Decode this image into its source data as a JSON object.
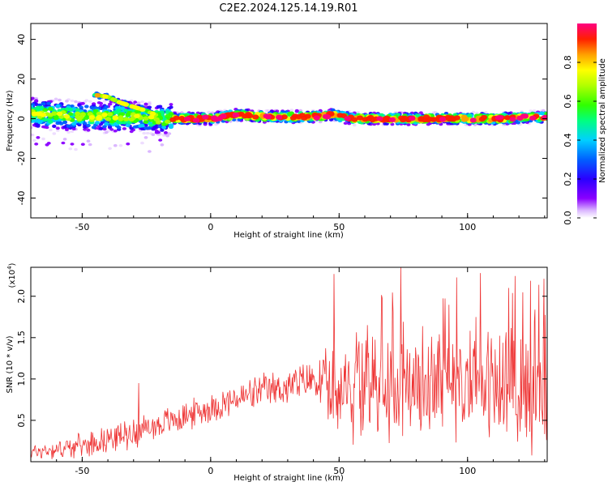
{
  "title": "C2E2.2024.125.14.19.R01",
  "chart_data": [
    {
      "type": "heatmap",
      "xlabel": "Height of straight line (km)",
      "ylabel": "Frequency (Hz)",
      "xlim": [
        -70,
        131
      ],
      "ylim": [
        -50,
        48
      ],
      "xticks": [
        -50,
        0,
        50,
        100
      ],
      "yticks": [
        -40,
        -20,
        0,
        20,
        40
      ],
      "xtick_labels": [
        "-50",
        "0",
        "50",
        "100"
      ],
      "ytick_labels": [
        "-40",
        "-20",
        "0",
        "20",
        "40"
      ],
      "colorbar": {
        "label": "Normalized spectral amplitude",
        "range": [
          0,
          1
        ],
        "ticks": [
          0.0,
          0.2,
          0.4,
          0.6,
          0.8
        ],
        "tick_labels": [
          "0.0",
          "0.2",
          "0.4",
          "0.6",
          "0.8"
        ],
        "colormap": [
          "#ffffff",
          "#d9b3ff",
          "#8a00ff",
          "#2a00ff",
          "#0060ff",
          "#00d0ff",
          "#00ff80",
          "#30ff00",
          "#b0ff00",
          "#ffff00",
          "#ffa000",
          "#ff2000",
          "#ff0080"
        ]
      },
      "ridge": [
        {
          "x": -70,
          "f": 3
        },
        {
          "x": -60,
          "f": 2
        },
        {
          "x": -50,
          "f": 1
        },
        {
          "x": -40,
          "f": 1
        },
        {
          "x": -30,
          "f": 1
        },
        {
          "x": -20,
          "f": 0
        },
        {
          "x": -15,
          "f": 0
        },
        {
          "x": 0,
          "f": 0
        },
        {
          "x": 10,
          "f": 2
        },
        {
          "x": 20,
          "f": 1
        },
        {
          "x": 30,
          "f": 1
        },
        {
          "x": 40,
          "f": 1
        },
        {
          "x": 48,
          "f": 2
        },
        {
          "x": 55,
          "f": 0
        },
        {
          "x": 70,
          "f": 0
        },
        {
          "x": 90,
          "f": 0
        },
        {
          "x": 110,
          "f": 0
        },
        {
          "x": 131,
          "f": 1
        }
      ],
      "upper_branch": [
        {
          "x": -45,
          "f": 12
        },
        {
          "x": -40,
          "f": 11
        },
        {
          "x": -35,
          "f": 8
        },
        {
          "x": -30,
          "f": 6
        },
        {
          "x": -25,
          "f": 4
        },
        {
          "x": -20,
          "f": 1
        }
      ],
      "notes": "Dense spectral energy near 0 Hz across the full height range; broader scatter and upper branch between -70 and -15 km."
    },
    {
      "type": "line",
      "xlabel": "Height of straight line (km)",
      "ylabel": "SNR (10 * v/v)",
      "y_multiplier": "(x10",
      "y_multiplier_exp": "4",
      "y_multiplier_close": ")",
      "xlim": [
        -70,
        131
      ],
      "ylim": [
        0,
        2.35
      ],
      "xticks": [
        -50,
        0,
        50,
        100
      ],
      "yticks": [
        0.5,
        1.0,
        1.5,
        2.0
      ],
      "xtick_labels": [
        "-50",
        "0",
        "50",
        "100"
      ],
      "ytick_labels": [
        "0.5",
        "1.0",
        "1.5",
        "2.0"
      ],
      "color": "#ee3333",
      "trend": [
        {
          "x": -70,
          "y": 0.12
        },
        {
          "x": -60,
          "y": 0.15
        },
        {
          "x": -50,
          "y": 0.2
        },
        {
          "x": -40,
          "y": 0.28
        },
        {
          "x": -30,
          "y": 0.35
        },
        {
          "x": -20,
          "y": 0.45
        },
        {
          "x": -10,
          "y": 0.55
        },
        {
          "x": 0,
          "y": 0.65
        },
        {
          "x": 10,
          "y": 0.75
        },
        {
          "x": 20,
          "y": 0.85
        },
        {
          "x": 30,
          "y": 0.9
        },
        {
          "x": 40,
          "y": 1.0
        },
        {
          "x": 50,
          "y": 0.8
        },
        {
          "x": 60,
          "y": 0.9
        },
        {
          "x": 70,
          "y": 0.9
        },
        {
          "x": 80,
          "y": 0.9
        },
        {
          "x": 90,
          "y": 0.95
        },
        {
          "x": 100,
          "y": 0.95
        },
        {
          "x": 110,
          "y": 0.95
        },
        {
          "x": 120,
          "y": 0.9
        },
        {
          "x": 131,
          "y": 0.8
        }
      ],
      "spread": [
        {
          "x": -70,
          "y": 0.08
        },
        {
          "x": -30,
          "y": 0.15
        },
        {
          "x": 0,
          "y": 0.15
        },
        {
          "x": 40,
          "y": 0.2
        },
        {
          "x": 50,
          "y": 0.5
        },
        {
          "x": 131,
          "y": 0.6
        }
      ],
      "peaks": [
        {
          "x": -28,
          "y": 0.95
        },
        {
          "x": 48,
          "y": 2.27
        },
        {
          "x": 74,
          "y": 2.35
        },
        {
          "x": 105,
          "y": 2.28
        },
        {
          "x": 116,
          "y": 2.1
        }
      ]
    }
  ]
}
